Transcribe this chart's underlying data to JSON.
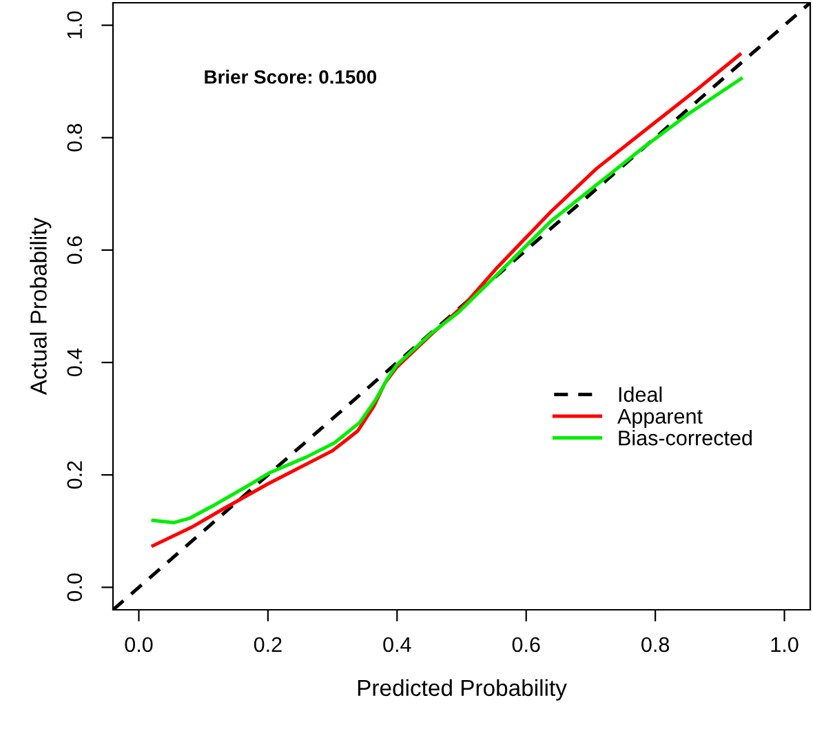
{
  "chart_data": {
    "type": "line",
    "xlabel": "Predicted Probability",
    "ylabel": "Actual Probability",
    "xlim": [
      -0.04,
      1.04
    ],
    "ylim": [
      -0.04,
      1.04
    ],
    "xticks": [
      {
        "value": 0,
        "label": "0.0"
      },
      0.2,
      0.4,
      0.6,
      0.8,
      {
        "value": 1,
        "label": "1.0"
      }
    ],
    "yticks": [
      {
        "value": 0,
        "label": "0.0"
      },
      0.2,
      0.4,
      0.6,
      0.8,
      {
        "value": 1,
        "label": "1.0"
      }
    ],
    "grid": false,
    "legend": "bottom right",
    "marker": "none",
    "annotations": [
      "Brier Score: 0.1500"
    ],
    "series": [
      {
        "name": "Ideal",
        "color": "#000000",
        "line_style": "dashed",
        "x": [
          -0.04,
          1.04
        ],
        "values": [
          -0.04,
          1.04
        ]
      },
      {
        "name": "Apparent",
        "color": "#ff0000",
        "line_style": "solid",
        "x": [
          0.022,
          0.082,
          0.13,
          0.2,
          0.3,
          0.339,
          0.364,
          0.381,
          0.399,
          0.452,
          0.503,
          0.556,
          0.638,
          0.709,
          0.794,
          0.866,
          0.931
        ],
        "values": [
          0.074,
          0.107,
          0.139,
          0.184,
          0.243,
          0.278,
          0.322,
          0.363,
          0.391,
          0.449,
          0.501,
          0.57,
          0.668,
          0.745,
          0.822,
          0.887,
          0.948
        ]
      },
      {
        "name": "Bias-corrected",
        "color": "#00ee00",
        "line_style": "solid",
        "x": [
          0.022,
          0.054,
          0.079,
          0.118,
          0.168,
          0.203,
          0.26,
          0.303,
          0.342,
          0.367,
          0.385,
          0.399,
          0.453,
          0.495,
          0.567,
          0.638,
          0.709,
          0.78,
          0.851,
          0.933
        ],
        "values": [
          0.119,
          0.115,
          0.123,
          0.147,
          0.18,
          0.204,
          0.232,
          0.257,
          0.293,
          0.334,
          0.371,
          0.395,
          0.452,
          0.489,
          0.57,
          0.651,
          0.716,
          0.781,
          0.842,
          0.905
        ]
      }
    ]
  }
}
